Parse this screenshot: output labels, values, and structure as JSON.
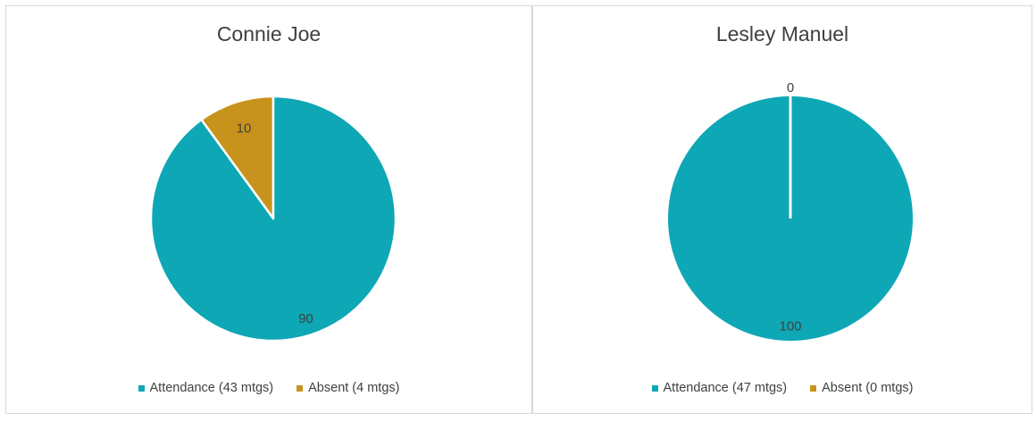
{
  "chart_data": [
    {
      "type": "pie",
      "title": "Connie Joe",
      "slices": [
        {
          "label": "Attendance (43 mtgs)",
          "value": 90,
          "data_label": "90",
          "color": "#0ea7b5"
        },
        {
          "label": "Absent (4 mtgs)",
          "value": 10,
          "data_label": "10",
          "color": "#c8931c"
        }
      ],
      "legend_position": "bottom"
    },
    {
      "type": "pie",
      "title": "Lesley Manuel",
      "slices": [
        {
          "label": "Attendance (47 mtgs)",
          "value": 100,
          "data_label": "100",
          "color": "#0ea7b5"
        },
        {
          "label": "Absent (0 mtgs)",
          "value": 0,
          "data_label": "0",
          "color": "#c8931c"
        }
      ],
      "legend_position": "bottom"
    }
  ]
}
